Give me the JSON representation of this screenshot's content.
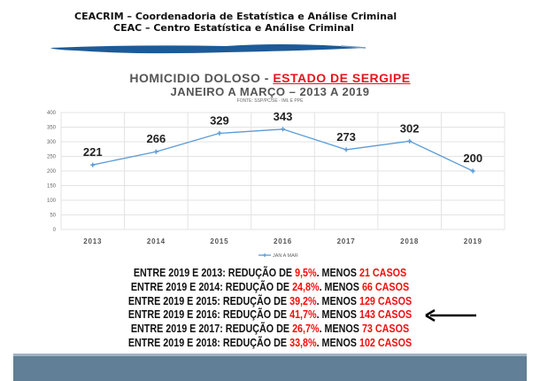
{
  "header": {
    "line1": "CEACRIM – Coordenadoria de Estatística e Análise Criminal",
    "line2": "CEAC – Centro Estatística e Análise Criminal"
  },
  "chart_data": {
    "type": "line",
    "title_part1": "HOMICIDIO DOLOSO - ",
    "title_part2": "ESTADO DE SERGIPE",
    "subtitle": "JANEIRO A MARÇO – 2013 A 2019",
    "source": "FONTE: SSP/PC/SE - IML E PPE",
    "categories": [
      "2013",
      "2014",
      "2015",
      "2016",
      "2017",
      "2018",
      "2019"
    ],
    "series": [
      {
        "name": "JAN A MAR",
        "values": [
          221,
          266,
          329,
          343,
          273,
          302,
          200
        ]
      }
    ],
    "ylim": [
      0,
      400
    ],
    "yticks": [
      0,
      50,
      100,
      150,
      200,
      250,
      300,
      350,
      400
    ],
    "grid": true,
    "legend": "bottom",
    "colors": {
      "line": "#5b9bd5",
      "grid": "#e3e3e3"
    }
  },
  "summary": [
    {
      "prefix": "ENTRE 2019 E 2013: REDUÇÃO DE ",
      "pct": "9,5%",
      "mid": ". MENOS ",
      "cases": "21 CASOS"
    },
    {
      "prefix": "ENTRE 2019 E 2014: REDUÇÃO DE ",
      "pct": "24,8%",
      "mid": ". MENOS ",
      "cases": "66 CASOS"
    },
    {
      "prefix": "ENTRE 2019 E 2015: REDUÇÃO DE ",
      "pct": "39,2%",
      "mid": ". MENOS ",
      "cases": "129 CASOS"
    },
    {
      "prefix": "ENTRE 2019 E 2016: REDUÇÃO DE ",
      "pct": "41,7%",
      "mid": ". MENOS ",
      "cases": "143 CASOS"
    },
    {
      "prefix": "ENTRE 2019 E 2017: REDUÇÃO DE ",
      "pct": "26,7%",
      "mid": ". MENOS ",
      "cases": "73 CASOS"
    },
    {
      "prefix": "ENTRE 2019 E 2018: REDUÇÃO DE ",
      "pct": "33,8%",
      "mid": ". MENOS ",
      "cases": "102 CASOS"
    }
  ],
  "colors": {
    "highlight": "#f01010",
    "footer": "#617f96"
  }
}
